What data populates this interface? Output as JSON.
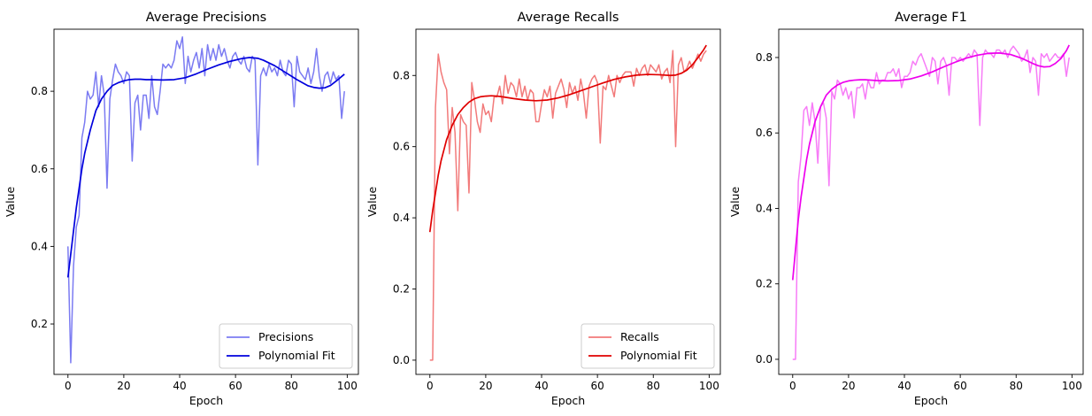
{
  "xlabel": "Epoch",
  "ylabel": "Value",
  "chart_data": [
    {
      "type": "line",
      "title": "Average Precisions",
      "xlabel": "Epoch",
      "ylabel": "Value",
      "xlim": [
        -5,
        104
      ],
      "ylim": [
        0.07,
        0.96
      ],
      "xticks": [
        0,
        20,
        40,
        60,
        80,
        100
      ],
      "yticks": [
        0.2,
        0.4,
        0.6,
        0.8
      ],
      "ytick_labels": [
        "0.2",
        "0.4",
        "0.6",
        "0.8"
      ],
      "legend": "lower-right",
      "grid": false,
      "x": [
        0,
        1,
        2,
        3,
        4,
        5,
        6,
        7,
        8,
        9,
        10,
        11,
        12,
        13,
        14,
        15,
        16,
        17,
        18,
        19,
        20,
        21,
        22,
        23,
        24,
        25,
        26,
        27,
        28,
        29,
        30,
        31,
        32,
        33,
        34,
        35,
        36,
        37,
        38,
        39,
        40,
        41,
        42,
        43,
        44,
        45,
        46,
        47,
        48,
        49,
        50,
        51,
        52,
        53,
        54,
        55,
        56,
        57,
        58,
        59,
        60,
        61,
        62,
        63,
        64,
        65,
        66,
        67,
        68,
        69,
        70,
        71,
        72,
        73,
        74,
        75,
        76,
        77,
        78,
        79,
        80,
        81,
        82,
        83,
        84,
        85,
        86,
        87,
        88,
        89,
        90,
        91,
        92,
        93,
        94,
        95,
        96,
        97,
        98,
        99
      ],
      "series": [
        {
          "name": "Precisions",
          "color": "#7b7bf2",
          "values": [
            0.4,
            0.1,
            0.35,
            0.45,
            0.48,
            0.68,
            0.72,
            0.8,
            0.78,
            0.79,
            0.85,
            0.76,
            0.84,
            0.79,
            0.55,
            0.78,
            0.83,
            0.87,
            0.85,
            0.84,
            0.82,
            0.85,
            0.84,
            0.62,
            0.77,
            0.79,
            0.7,
            0.79,
            0.79,
            0.73,
            0.84,
            0.76,
            0.74,
            0.8,
            0.87,
            0.86,
            0.87,
            0.86,
            0.88,
            0.93,
            0.91,
            0.94,
            0.82,
            0.89,
            0.85,
            0.88,
            0.9,
            0.86,
            0.91,
            0.84,
            0.92,
            0.88,
            0.91,
            0.88,
            0.92,
            0.89,
            0.91,
            0.88,
            0.86,
            0.89,
            0.9,
            0.88,
            0.87,
            0.89,
            0.86,
            0.85,
            0.89,
            0.88,
            0.61,
            0.84,
            0.86,
            0.84,
            0.87,
            0.85,
            0.86,
            0.84,
            0.88,
            0.85,
            0.84,
            0.88,
            0.87,
            0.76,
            0.89,
            0.85,
            0.84,
            0.83,
            0.86,
            0.82,
            0.85,
            0.91,
            0.84,
            0.8,
            0.84,
            0.85,
            0.82,
            0.85,
            0.83,
            0.84,
            0.73,
            0.8
          ]
        },
        {
          "name": "Polynomial Fit",
          "color": "#0000dd",
          "x": [
            0,
            1,
            2,
            3,
            4,
            5,
            6,
            8,
            10,
            12,
            14,
            16,
            18,
            20,
            22,
            24,
            26,
            28,
            30,
            34,
            38,
            42,
            46,
            50,
            54,
            58,
            62,
            65,
            68,
            70,
            74,
            78,
            82,
            86,
            88,
            90,
            92,
            94,
            96,
            98,
            99
          ],
          "values": [
            0.32,
            0.38,
            0.44,
            0.5,
            0.55,
            0.6,
            0.64,
            0.7,
            0.75,
            0.78,
            0.8,
            0.815,
            0.822,
            0.827,
            0.83,
            0.831,
            0.831,
            0.83,
            0.83,
            0.829,
            0.83,
            0.835,
            0.845,
            0.857,
            0.868,
            0.877,
            0.884,
            0.887,
            0.885,
            0.88,
            0.866,
            0.848,
            0.83,
            0.814,
            0.81,
            0.808,
            0.809,
            0.815,
            0.826,
            0.838,
            0.844
          ]
        }
      ]
    },
    {
      "type": "line",
      "title": "Average Recalls",
      "xlabel": "Epoch",
      "ylabel": "Value",
      "xlim": [
        -5,
        104
      ],
      "ylim": [
        -0.04,
        0.93
      ],
      "xticks": [
        0,
        20,
        40,
        60,
        80,
        100
      ],
      "yticks": [
        0.0,
        0.2,
        0.4,
        0.6,
        0.8
      ],
      "ytick_labels": [
        "0.0",
        "0.2",
        "0.4",
        "0.6",
        "0.8"
      ],
      "legend": "lower-right",
      "grid": false,
      "x": [
        0,
        1,
        2,
        3,
        4,
        5,
        6,
        7,
        8,
        9,
        10,
        11,
        12,
        13,
        14,
        15,
        16,
        17,
        18,
        19,
        20,
        21,
        22,
        23,
        24,
        25,
        26,
        27,
        28,
        29,
        30,
        31,
        32,
        33,
        34,
        35,
        36,
        37,
        38,
        39,
        40,
        41,
        42,
        43,
        44,
        45,
        46,
        47,
        48,
        49,
        50,
        51,
        52,
        53,
        54,
        55,
        56,
        57,
        58,
        59,
        60,
        61,
        62,
        63,
        64,
        65,
        66,
        67,
        68,
        69,
        70,
        71,
        72,
        73,
        74,
        75,
        76,
        77,
        78,
        79,
        80,
        81,
        82,
        83,
        84,
        85,
        86,
        87,
        88,
        89,
        90,
        91,
        92,
        93,
        94,
        95,
        96,
        97,
        98,
        99
      ],
      "series": [
        {
          "name": "Recalls",
          "color": "#f27a7a",
          "values": [
            0.0,
            0.0,
            0.71,
            0.86,
            0.81,
            0.78,
            0.76,
            0.58,
            0.71,
            0.64,
            0.42,
            0.69,
            0.67,
            0.66,
            0.47,
            0.78,
            0.73,
            0.67,
            0.64,
            0.72,
            0.69,
            0.7,
            0.67,
            0.74,
            0.74,
            0.77,
            0.72,
            0.8,
            0.75,
            0.78,
            0.77,
            0.74,
            0.79,
            0.74,
            0.77,
            0.73,
            0.76,
            0.75,
            0.67,
            0.67,
            0.72,
            0.76,
            0.74,
            0.77,
            0.68,
            0.75,
            0.77,
            0.79,
            0.76,
            0.71,
            0.78,
            0.75,
            0.77,
            0.73,
            0.79,
            0.75,
            0.68,
            0.77,
            0.79,
            0.8,
            0.78,
            0.61,
            0.77,
            0.76,
            0.8,
            0.77,
            0.74,
            0.8,
            0.78,
            0.8,
            0.81,
            0.81,
            0.81,
            0.77,
            0.82,
            0.8,
            0.82,
            0.83,
            0.8,
            0.83,
            0.82,
            0.81,
            0.83,
            0.79,
            0.81,
            0.82,
            0.78,
            0.87,
            0.6,
            0.83,
            0.85,
            0.81,
            0.82,
            0.84,
            0.82,
            0.84,
            0.86,
            0.84,
            0.86,
            0.87
          ]
        },
        {
          "name": "Polynomial Fit",
          "color": "#e00000",
          "x": [
            0,
            1,
            2,
            3,
            4,
            5,
            6,
            8,
            10,
            12,
            14,
            16,
            18,
            20,
            22,
            24,
            26,
            30,
            34,
            38,
            42,
            46,
            50,
            54,
            58,
            62,
            66,
            70,
            74,
            78,
            82,
            86,
            88,
            90,
            92,
            94,
            96,
            98,
            99
          ],
          "values": [
            0.36,
            0.42,
            0.47,
            0.52,
            0.56,
            0.59,
            0.62,
            0.66,
            0.69,
            0.71,
            0.725,
            0.735,
            0.74,
            0.742,
            0.743,
            0.742,
            0.74,
            0.735,
            0.731,
            0.729,
            0.731,
            0.737,
            0.746,
            0.757,
            0.768,
            0.779,
            0.789,
            0.796,
            0.801,
            0.803,
            0.802,
            0.8,
            0.801,
            0.806,
            0.815,
            0.83,
            0.85,
            0.872,
            0.885
          ]
        }
      ]
    },
    {
      "type": "line",
      "title": "Average F1",
      "xlabel": "Epoch",
      "ylabel": "Value",
      "xlim": [
        -5,
        104
      ],
      "ylim": [
        -0.04,
        0.875
      ],
      "xticks": [
        0,
        20,
        40,
        60,
        80,
        100
      ],
      "yticks": [
        0.0,
        0.2,
        0.4,
        0.6,
        0.8
      ],
      "ytick_labels": [
        "0.0",
        "0.2",
        "0.4",
        "0.6",
        "0.8"
      ],
      "legend": "none",
      "grid": false,
      "x": [
        0,
        1,
        2,
        3,
        4,
        5,
        6,
        7,
        8,
        9,
        10,
        11,
        12,
        13,
        14,
        15,
        16,
        17,
        18,
        19,
        20,
        21,
        22,
        23,
        24,
        25,
        26,
        27,
        28,
        29,
        30,
        31,
        32,
        33,
        34,
        35,
        36,
        37,
        38,
        39,
        40,
        41,
        42,
        43,
        44,
        45,
        46,
        47,
        48,
        49,
        50,
        51,
        52,
        53,
        54,
        55,
        56,
        57,
        58,
        59,
        60,
        61,
        62,
        63,
        64,
        65,
        66,
        67,
        68,
        69,
        70,
        71,
        72,
        73,
        74,
        75,
        76,
        77,
        78,
        79,
        80,
        81,
        82,
        83,
        84,
        85,
        86,
        87,
        88,
        89,
        90,
        91,
        92,
        93,
        94,
        95,
        96,
        97,
        98,
        99
      ],
      "series": [
        {
          "name": "F1",
          "color": "#f77cf7",
          "values": [
            0.0,
            0.0,
            0.47,
            0.54,
            0.66,
            0.67,
            0.62,
            0.68,
            0.63,
            0.52,
            0.67,
            0.68,
            0.64,
            0.46,
            0.71,
            0.69,
            0.74,
            0.73,
            0.7,
            0.72,
            0.69,
            0.71,
            0.64,
            0.72,
            0.72,
            0.73,
            0.69,
            0.74,
            0.72,
            0.72,
            0.76,
            0.73,
            0.74,
            0.74,
            0.76,
            0.76,
            0.77,
            0.75,
            0.77,
            0.72,
            0.75,
            0.75,
            0.76,
            0.79,
            0.78,
            0.8,
            0.81,
            0.79,
            0.77,
            0.75,
            0.8,
            0.79,
            0.73,
            0.79,
            0.8,
            0.78,
            0.7,
            0.8,
            0.8,
            0.79,
            0.8,
            0.79,
            0.8,
            0.81,
            0.8,
            0.82,
            0.81,
            0.62,
            0.8,
            0.82,
            0.81,
            0.81,
            0.8,
            0.82,
            0.82,
            0.81,
            0.82,
            0.8,
            0.82,
            0.83,
            0.82,
            0.81,
            0.79,
            0.8,
            0.82,
            0.76,
            0.8,
            0.79,
            0.7,
            0.81,
            0.8,
            0.81,
            0.79,
            0.8,
            0.81,
            0.8,
            0.8,
            0.81,
            0.75,
            0.8
          ]
        },
        {
          "name": "Polynomial Fit",
          "color": "#ee00ee",
          "x": [
            0,
            1,
            2,
            3,
            4,
            5,
            6,
            8,
            10,
            12,
            14,
            16,
            18,
            20,
            22,
            24,
            26,
            30,
            34,
            38,
            42,
            46,
            50,
            54,
            58,
            62,
            66,
            70,
            74,
            78,
            82,
            86,
            88,
            90,
            92,
            94,
            96,
            98,
            99
          ],
          "values": [
            0.21,
            0.29,
            0.37,
            0.43,
            0.48,
            0.53,
            0.57,
            0.63,
            0.67,
            0.7,
            0.716,
            0.727,
            0.734,
            0.738,
            0.74,
            0.741,
            0.741,
            0.739,
            0.738,
            0.739,
            0.743,
            0.751,
            0.762,
            0.775,
            0.787,
            0.798,
            0.806,
            0.811,
            0.812,
            0.808,
            0.798,
            0.784,
            0.778,
            0.775,
            0.776,
            0.784,
            0.797,
            0.818,
            0.833
          ]
        }
      ]
    }
  ]
}
